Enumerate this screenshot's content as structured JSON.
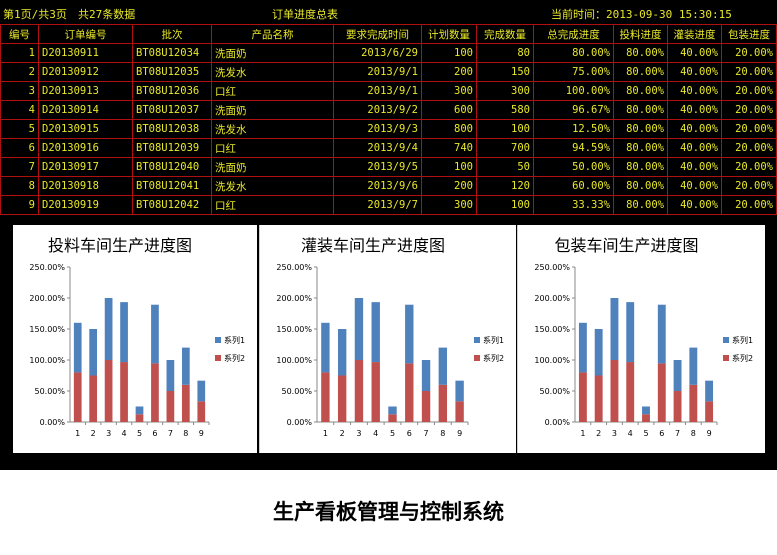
{
  "header": {
    "page_info": "第1页/共3页",
    "record_count": "共27条数据",
    "title": "订单进度总表",
    "current_time": "当前时间：2013-09-30 15:30:15"
  },
  "table": {
    "columns": [
      "编号",
      "订单编号",
      "批次",
      "产品名称",
      "要求完成时间",
      "计划数量",
      "完成数量",
      "总完成进度",
      "投料进度",
      "灌装进度",
      "包装进度"
    ],
    "rows": [
      [
        "1",
        "D20130911",
        "BT08U12034",
        "洗面奶",
        "2013/6/29",
        "100",
        "80",
        "80.00%",
        "80.00%",
        "40.00%",
        "20.00%"
      ],
      [
        "2",
        "D20130912",
        "BT08U12035",
        "洗发水",
        "2013/9/1",
        "200",
        "150",
        "75.00%",
        "80.00%",
        "40.00%",
        "20.00%"
      ],
      [
        "3",
        "D20130913",
        "BT08U12036",
        "口红",
        "2013/9/1",
        "300",
        "300",
        "100.00%",
        "80.00%",
        "40.00%",
        "20.00%"
      ],
      [
        "4",
        "D20130914",
        "BT08U12037",
        "洗面奶",
        "2013/9/2",
        "600",
        "580",
        "96.67%",
        "80.00%",
        "40.00%",
        "20.00%"
      ],
      [
        "5",
        "D20130915",
        "BT08U12038",
        "洗发水",
        "2013/9/3",
        "800",
        "100",
        "12.50%",
        "80.00%",
        "40.00%",
        "20.00%"
      ],
      [
        "6",
        "D20130916",
        "BT08U12039",
        "口红",
        "2013/9/4",
        "740",
        "700",
        "94.59%",
        "80.00%",
        "40.00%",
        "20.00%"
      ],
      [
        "7",
        "D20130917",
        "BT08U12040",
        "洗面奶",
        "2013/9/5",
        "100",
        "50",
        "50.00%",
        "80.00%",
        "40.00%",
        "20.00%"
      ],
      [
        "8",
        "D20130918",
        "BT08U12041",
        "洗发水",
        "2013/9/6",
        "200",
        "120",
        "60.00%",
        "80.00%",
        "40.00%",
        "20.00%"
      ],
      [
        "9",
        "D20130919",
        "BT08U12042",
        "口红",
        "2013/9/7",
        "300",
        "100",
        "33.33%",
        "80.00%",
        "40.00%",
        "20.00%"
      ]
    ]
  },
  "colors": {
    "series1": "#4f81bd",
    "series2": "#c0504d",
    "table_text": "#e8e82a",
    "table_border": "#b01010"
  },
  "chart_data": [
    {
      "type": "bar",
      "stacked": true,
      "title": "投料车间生产进度图",
      "categories": [
        "1",
        "2",
        "3",
        "4",
        "5",
        "6",
        "7",
        "8",
        "9"
      ],
      "series": [
        {
          "name": "系列1",
          "values": [
            80,
            75,
            100,
            96.67,
            12.5,
            94.59,
            50,
            60,
            33.33
          ]
        },
        {
          "name": "系列2",
          "values": [
            80,
            75,
            100,
            96.67,
            12.5,
            94.59,
            50,
            60,
            33.33
          ]
        }
      ],
      "yticks": [
        "0.00%",
        "50.00%",
        "100.00%",
        "150.00%",
        "200.00%",
        "250.00%"
      ],
      "ylim": [
        0,
        250
      ],
      "legend": "right"
    },
    {
      "type": "bar",
      "stacked": true,
      "title": "灌装车间生产进度图",
      "categories": [
        "1",
        "2",
        "3",
        "4",
        "5",
        "6",
        "7",
        "8",
        "9"
      ],
      "series": [
        {
          "name": "系列1",
          "values": [
            80,
            75,
            100,
            96.67,
            12.5,
            94.59,
            50,
            60,
            33.33
          ]
        },
        {
          "name": "系列2",
          "values": [
            80,
            75,
            100,
            96.67,
            12.5,
            94.59,
            50,
            60,
            33.33
          ]
        }
      ],
      "yticks": [
        "0.00%",
        "50.00%",
        "100.00%",
        "150.00%",
        "200.00%",
        "250.00%"
      ],
      "ylim": [
        0,
        250
      ],
      "legend": "right"
    },
    {
      "type": "bar",
      "stacked": true,
      "title": "包装车间生产进度图",
      "categories": [
        "1",
        "2",
        "3",
        "4",
        "5",
        "6",
        "7",
        "8",
        "9"
      ],
      "series": [
        {
          "name": "系列1",
          "values": [
            80,
            75,
            100,
            96.67,
            12.5,
            94.59,
            50,
            60,
            33.33
          ]
        },
        {
          "name": "系列2",
          "values": [
            80,
            75,
            100,
            96.67,
            12.5,
            94.59,
            50,
            60,
            33.33
          ]
        }
      ],
      "yticks": [
        "0.00%",
        "50.00%",
        "100.00%",
        "150.00%",
        "200.00%",
        "250.00%"
      ],
      "ylim": [
        0,
        250
      ],
      "legend": "right"
    }
  ],
  "footer": {
    "system_title": "生产看板管理与控制系统"
  }
}
